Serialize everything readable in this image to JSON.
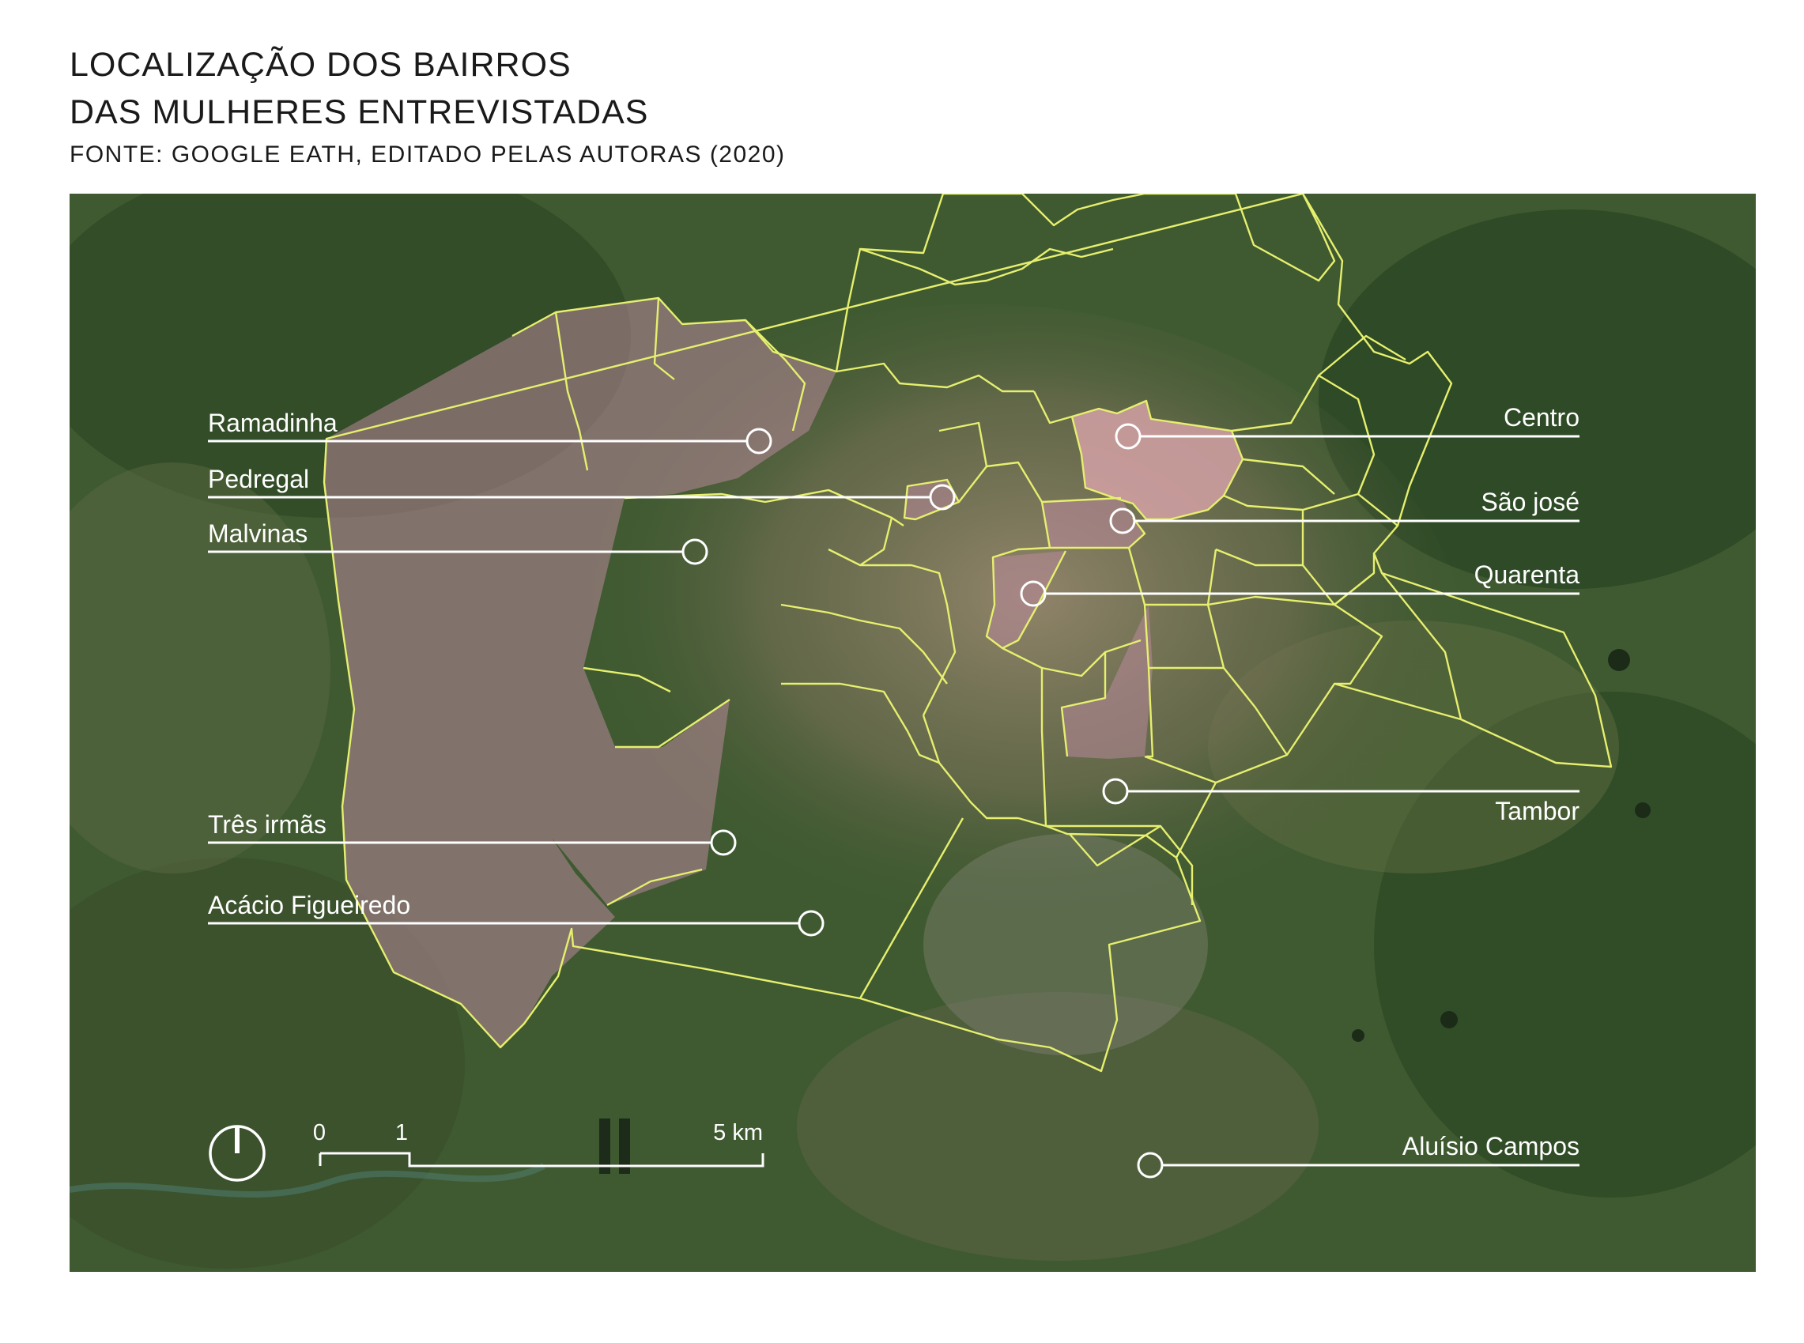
{
  "header": {
    "title_line1": "LOCALIZAÇÃO DOS BAIRROS",
    "title_line2": "DAS MULHERES ENTREVISTADAS",
    "source": "FONTE: GOOGLE EATH, EDITADO PELAS AUTORAS (2020)"
  },
  "labels": {
    "ramadinha": "Ramadinha",
    "pedregal": "Pedregal",
    "malvinas": "Malvinas",
    "tres_irmas": "Três irmãs",
    "acacio_figueiredo": "Acácio Figueiredo",
    "centro": "Centro",
    "sao_jose": "São josé",
    "quarenta": "Quarenta",
    "tambor": "Tambor",
    "aluisio_campos": "Aluísio Campos"
  },
  "scale_bar": {
    "tick_0": "0",
    "tick_1": "1",
    "tick_5": "5 km"
  },
  "colors": {
    "boundary": "#e6ef6e",
    "highlight": "#b8889a",
    "centro_fill": "#d4a1a6",
    "label_line": "#ffffff",
    "vegetation": "#35522c",
    "urban": "#8a7a62"
  }
}
